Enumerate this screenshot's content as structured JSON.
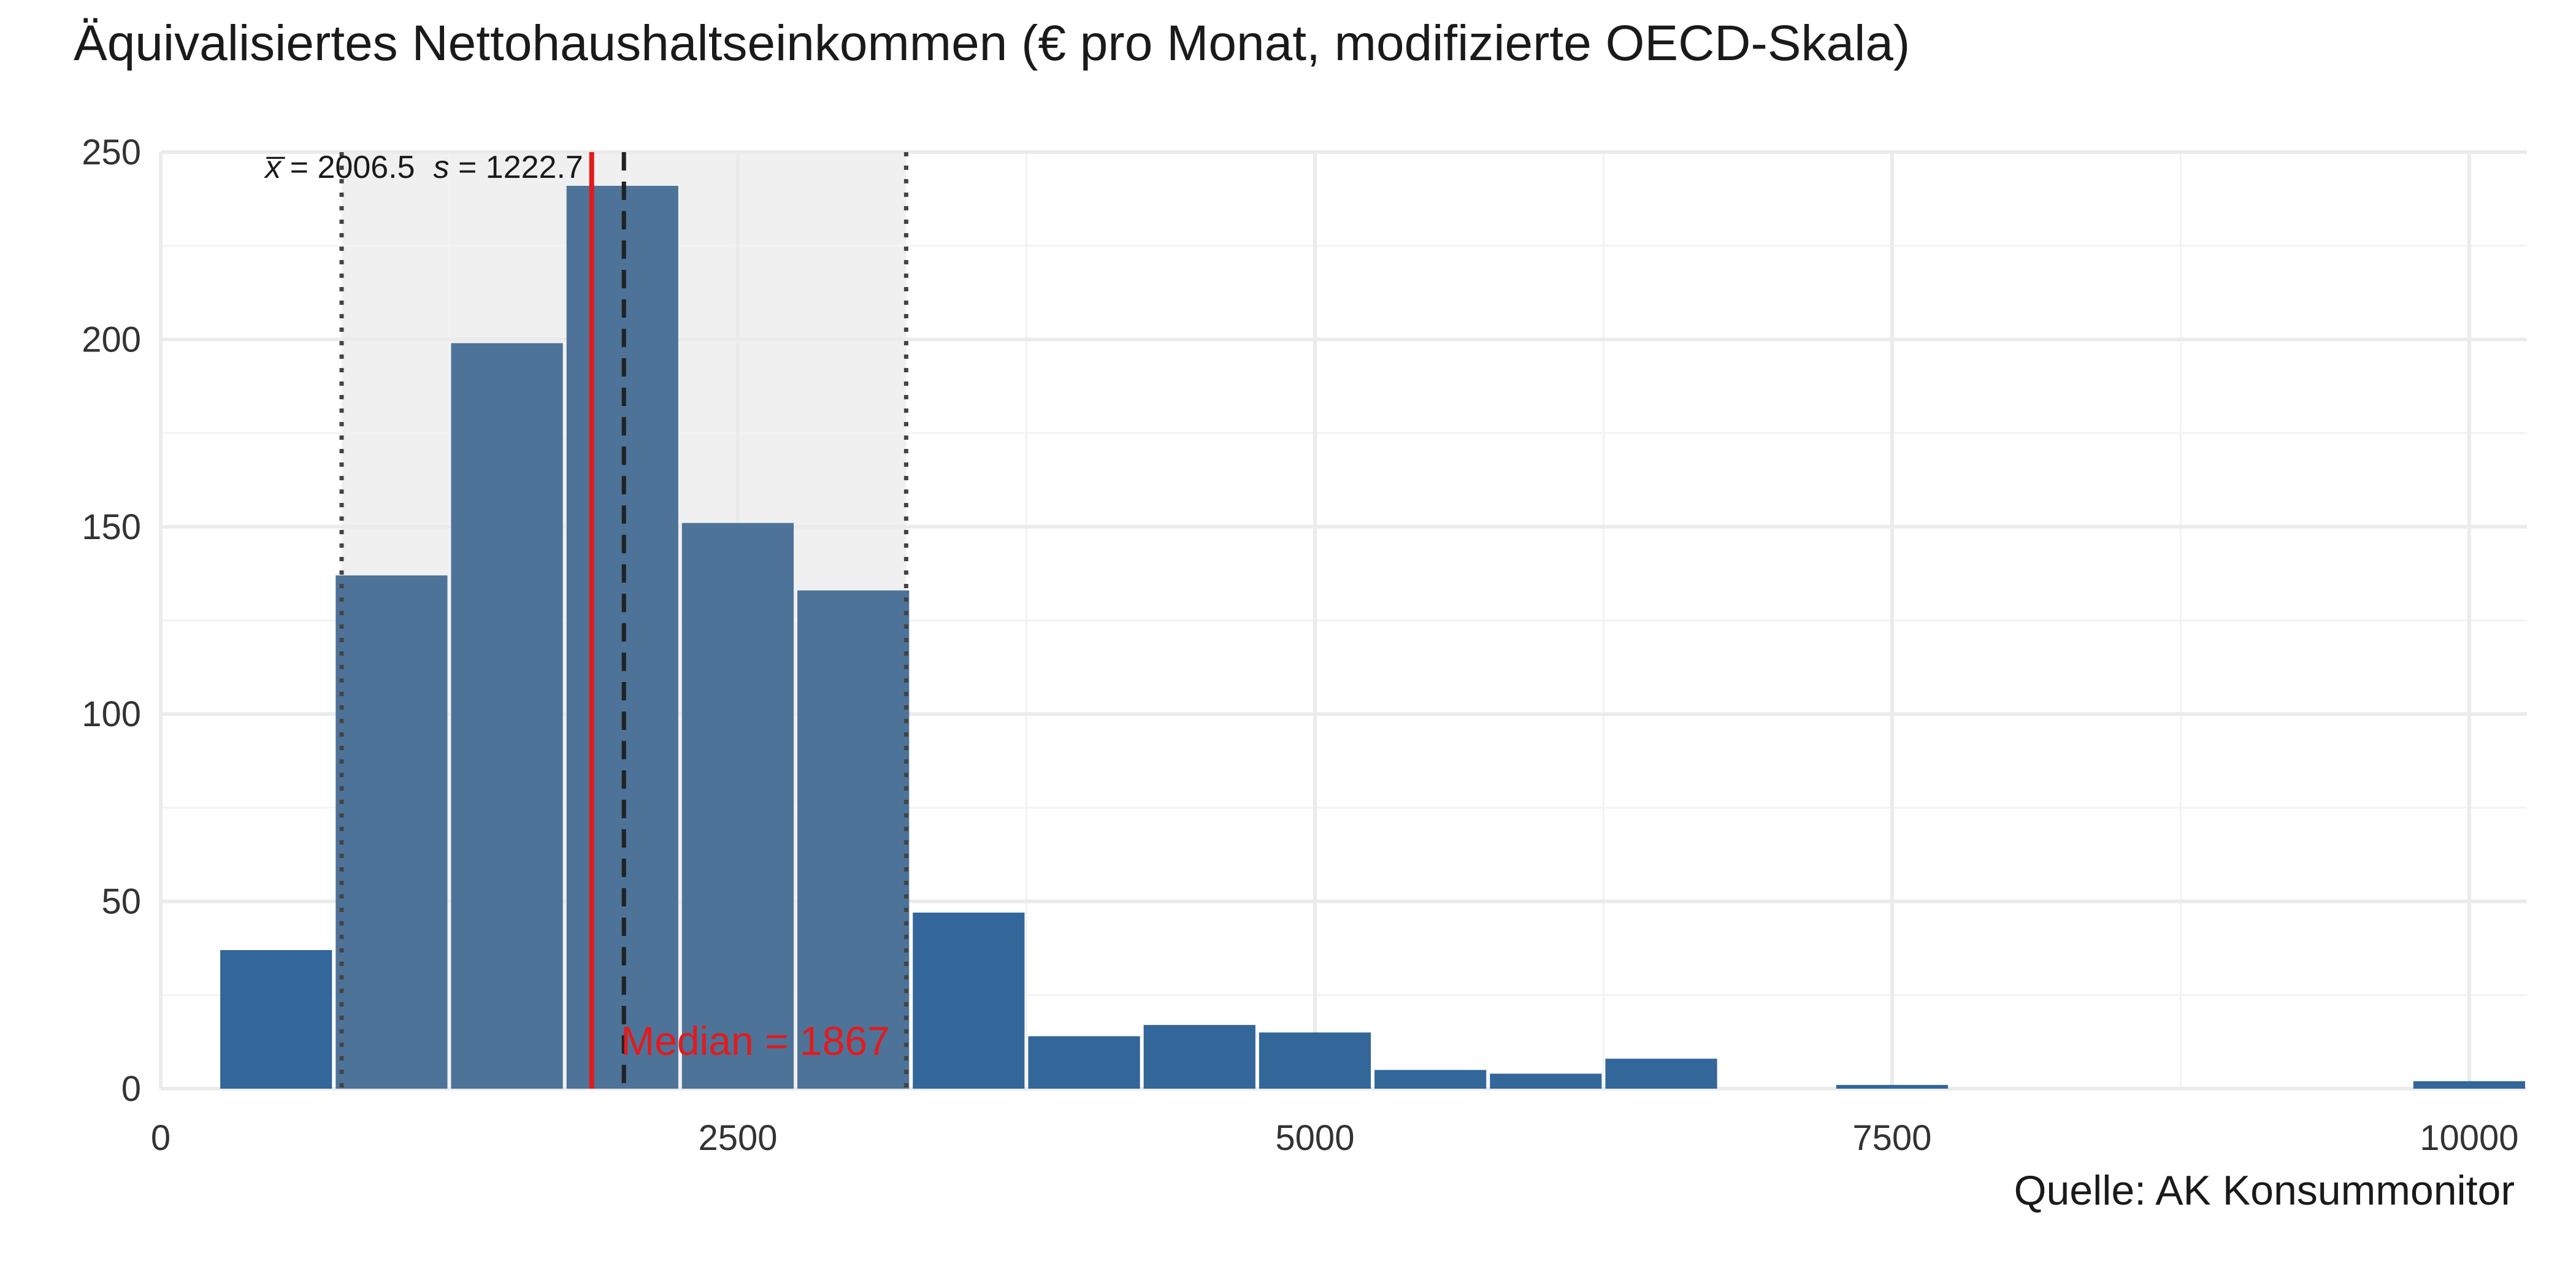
{
  "chart_data": {
    "type": "bar",
    "title": "Äquivalisiertes Nettohaushaltseinkommen (€ pro Monat, modifizierte OECD-Skala)",
    "caption": "Quelle: AK Konsummonitor",
    "xlabel": "",
    "ylabel": "",
    "xlim": [
      0,
      10250
    ],
    "ylim": [
      0,
      250
    ],
    "x_ticks": [
      0,
      2500,
      5000,
      7500,
      10000
    ],
    "y_ticks": [
      0,
      50,
      100,
      150,
      200,
      250
    ],
    "grid": true,
    "bin_width": 500,
    "bins": [
      {
        "start": 250,
        "end": 750,
        "count": 37
      },
      {
        "start": 750,
        "end": 1250,
        "count": 137
      },
      {
        "start": 1250,
        "end": 1750,
        "count": 199
      },
      {
        "start": 1750,
        "end": 2250,
        "count": 241
      },
      {
        "start": 2250,
        "end": 2750,
        "count": 151
      },
      {
        "start": 2750,
        "end": 3250,
        "count": 133
      },
      {
        "start": 3250,
        "end": 3750,
        "count": 47
      },
      {
        "start": 3750,
        "end": 4250,
        "count": 14
      },
      {
        "start": 4250,
        "end": 4750,
        "count": 17
      },
      {
        "start": 4750,
        "end": 5250,
        "count": 15
      },
      {
        "start": 5250,
        "end": 5750,
        "count": 5
      },
      {
        "start": 5750,
        "end": 6250,
        "count": 4
      },
      {
        "start": 6250,
        "end": 6750,
        "count": 8
      },
      {
        "start": 6750,
        "end": 7250,
        "count": 0
      },
      {
        "start": 7250,
        "end": 7750,
        "count": 1
      },
      {
        "start": 7750,
        "end": 8250,
        "count": 0
      },
      {
        "start": 8250,
        "end": 8750,
        "count": 0
      },
      {
        "start": 8750,
        "end": 9250,
        "count": 0
      },
      {
        "start": 9250,
        "end": 9750,
        "count": 0
      },
      {
        "start": 9750,
        "end": 10250,
        "count": 2
      }
    ],
    "mean": 2006.5,
    "sd": 1222.7,
    "median": 1867,
    "sd_band": [
      783.8,
      3229.2
    ],
    "stats_label": {
      "mean_symbol": "x̅",
      "mean_text": " = 2006.5",
      "sd_symbol": "s",
      "sd_text": " = 1222.7"
    },
    "median_label": "Median = 1867",
    "colors": {
      "bar_outside": "#336699",
      "bar_inside": "#4d7399",
      "band": "#f0f0f0",
      "median": "#e31a1c",
      "mean": "#222222",
      "sd": "#444444",
      "grid_major": "#ebebeb",
      "grid_minor": "#f3f3f3"
    }
  }
}
